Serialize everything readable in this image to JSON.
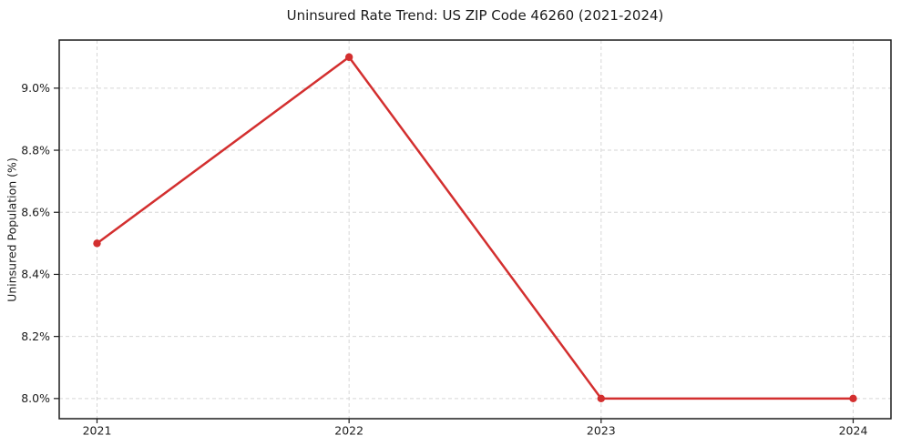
{
  "figure": {
    "background": "#ffffff"
  },
  "chart_data": {
    "type": "line",
    "title": "Uninsured Rate Trend: US ZIP Code 46260 (2021-2024)",
    "xlabel": "",
    "ylabel": "Uninsured Population (%)",
    "categories": [
      "2021",
      "2022",
      "2023",
      "2024"
    ],
    "x": [
      2021,
      2022,
      2023,
      2024
    ],
    "series": [
      {
        "name": "uninsured-rate",
        "values": [
          8.5,
          9.1,
          8.0,
          8.0
        ],
        "color": "#d32f2f",
        "marker": "circle"
      }
    ],
    "xlim": [
      2020.85,
      2024.15
    ],
    "ylim": [
      7.935,
      9.155
    ],
    "yticks": [
      8.0,
      8.2,
      8.4,
      8.6,
      8.8,
      9.0
    ],
    "ytick_labels": [
      "8.0%",
      "8.2%",
      "8.4%",
      "8.6%",
      "8.8%",
      "9.0%"
    ],
    "xtick_labels": [
      "2021",
      "2022",
      "2023",
      "2024"
    ],
    "grid": true,
    "grid_style": "dashed",
    "grid_color": "#d6d6d6",
    "spine_color": "#1c1c1c",
    "text_color": "#1c1c1c",
    "legend": "none"
  }
}
